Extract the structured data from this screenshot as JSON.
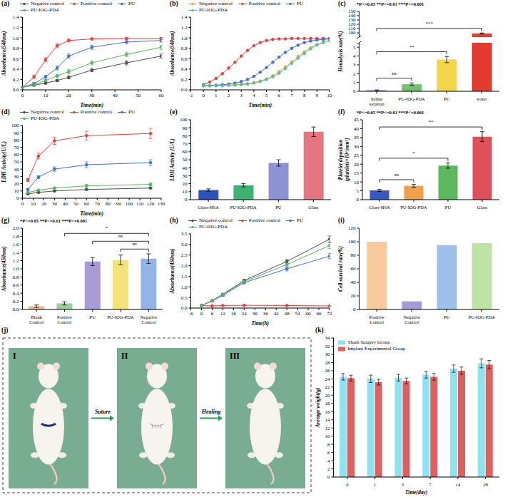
{
  "chart_data": [
    {
      "panel_label": "(a)",
      "type": "line",
      "x_label": "Time(min)",
      "y_label": "Absorbance(540nm)",
      "x": [
        0,
        5,
        10,
        15,
        20,
        30,
        45,
        60
      ],
      "xlim": [
        0,
        60
      ],
      "xticks": [
        0,
        10,
        20,
        30,
        40,
        50,
        60
      ],
      "ylim": [
        0,
        1.4
      ],
      "yticks": [
        {
          "value": 0,
          "label": "0.0"
        },
        0.2,
        0.4,
        0.6,
        0.8,
        {
          "value": 1,
          "label": "1.0"
        },
        1.2,
        1.4
      ],
      "legend": "top",
      "grid": false,
      "marker": "circle",
      "series": [
        {
          "name": "Negative control",
          "color": "#4d4d4d",
          "values": [
            0.05,
            0.09,
            0.13,
            0.18,
            0.24,
            0.38,
            0.52,
            0.65
          ],
          "errors": [
            0.01,
            0.02,
            0.02,
            0.02,
            0.03,
            0.03,
            0.04,
            0.04
          ]
        },
        {
          "name": "Positive control",
          "color": "#e8403a",
          "values": [
            0.05,
            0.25,
            0.58,
            0.85,
            0.95,
            0.98,
            0.99,
            0.99
          ],
          "errors": [
            0.01,
            0.03,
            0.04,
            0.04,
            0.03,
            0.02,
            0.02,
            0.02
          ]
        },
        {
          "name": "PU",
          "color": "#3f6fd8",
          "values": [
            0.05,
            0.12,
            0.25,
            0.42,
            0.65,
            0.82,
            0.92,
            0.95
          ],
          "errors": [
            0.01,
            0.02,
            0.03,
            0.04,
            0.04,
            0.04,
            0.03,
            0.03
          ]
        },
        {
          "name": "PU-IOG-PDA",
          "color": "#55b85a",
          "values": [
            0.05,
            0.1,
            0.18,
            0.27,
            0.35,
            0.52,
            0.68,
            0.82
          ],
          "errors": [
            0.01,
            0.02,
            0.02,
            0.03,
            0.04,
            0.04,
            0.04,
            0.04
          ]
        }
      ]
    },
    {
      "panel_label": "(b)",
      "type": "line",
      "x_label": "Time(min)",
      "y_label": "Absorbance(540nm)",
      "x": [
        0,
        0.5,
        1,
        1.5,
        2,
        2.5,
        3,
        3.5,
        4,
        4.5,
        5,
        5.5,
        6,
        6.5,
        7,
        7.5,
        8,
        8.5,
        9,
        9.5,
        10
      ],
      "xlim": [
        -1,
        10
      ],
      "xticks": [
        -1,
        0,
        1,
        2,
        3,
        4,
        5,
        6,
        7,
        8,
        9,
        10
      ],
      "ylim": [
        0,
        1.4
      ],
      "yticks": [
        {
          "value": 0,
          "label": "0.0"
        },
        0.2,
        0.4,
        0.6,
        0.8,
        {
          "value": 1,
          "label": "1.0"
        },
        1.2,
        1.4
      ],
      "legend": "top",
      "grid": false,
      "marker": "circle",
      "series": [
        {
          "name": "Negative control",
          "color": "#f5a13c",
          "values": [
            0.08,
            0.08,
            0.08,
            0.08,
            0.09,
            0.1,
            0.11,
            0.12,
            0.14,
            0.17,
            0.21,
            0.27,
            0.35,
            0.44,
            0.54,
            0.64,
            0.73,
            0.81,
            0.87,
            0.92,
            0.95
          ]
        },
        {
          "name": "Positive control",
          "color": "#e8403a",
          "values": [
            0.1,
            0.15,
            0.22,
            0.31,
            0.42,
            0.53,
            0.65,
            0.76,
            0.85,
            0.91,
            0.95,
            0.97,
            0.98,
            0.98,
            0.99,
            0.99,
            0.99,
            0.99,
            0.99,
            0.99,
            0.99
          ]
        },
        {
          "name": "PU",
          "color": "#3f6fd8",
          "values": [
            0.08,
            0.08,
            0.09,
            0.1,
            0.11,
            0.13,
            0.16,
            0.2,
            0.26,
            0.34,
            0.43,
            0.53,
            0.63,
            0.72,
            0.8,
            0.86,
            0.91,
            0.94,
            0.96,
            0.97,
            0.98
          ]
        },
        {
          "name": "PU-IOG-PDA",
          "color": "#4cc3a4",
          "values": [
            0.08,
            0.08,
            0.08,
            0.08,
            0.09,
            0.09,
            0.1,
            0.11,
            0.13,
            0.16,
            0.2,
            0.25,
            0.32,
            0.41,
            0.51,
            0.61,
            0.7,
            0.79,
            0.86,
            0.91,
            0.95
          ]
        }
      ]
    },
    {
      "panel_label": "(c)",
      "type": "bar",
      "y_label": "Hemolysis rate(%)",
      "note": "*P<=0.05 **P<=0.01 ***P<=0.001",
      "categories": [
        "Saline solution",
        "PU-IOG-PDA",
        "PU",
        "water"
      ],
      "values": [
        0.1,
        0.8,
        3.6,
        98.5
      ],
      "errors": [
        0.05,
        0.15,
        0.35,
        1.0
      ],
      "colors": [
        "#3f6fd8",
        "#72c36c",
        "#f2d64b",
        "#e33b2f"
      ],
      "ylim": [
        0,
        150
      ],
      "yticks": [
        0,
        1,
        2,
        3,
        4,
        5,
        100,
        110,
        120,
        130,
        140,
        150
      ],
      "axis_break": [
        5.5,
        90
      ],
      "grid": false,
      "brackets": [
        {
          "from": "Saline solution",
          "to": "PU-IOG-PDA",
          "label": "ns"
        },
        {
          "from": "Saline solution",
          "to": "PU",
          "label": "**"
        },
        {
          "from": "Saline solution",
          "to": "water",
          "label": "***"
        }
      ]
    },
    {
      "panel_label": "(d)",
      "type": "line",
      "x_label": "Time(min)",
      "y_label": "LDH Activity(U/L)",
      "x": [
        5,
        15,
        30,
        60,
        120
      ],
      "xlim": [
        0,
        130
      ],
      "xticks": [
        0,
        10,
        20,
        30,
        40,
        50,
        60,
        70,
        80,
        90,
        100,
        110,
        120,
        130
      ],
      "ylim": [
        0,
        100
      ],
      "yticks": [
        0,
        10,
        20,
        30,
        40,
        50,
        60,
        70,
        80,
        90,
        100
      ],
      "legend": "top",
      "grid": false,
      "marker": "circle",
      "series": [
        {
          "name": "Negative control",
          "color": "#4d4d4d",
          "values": [
            6,
            8,
            10,
            12,
            14
          ],
          "errors": [
            1,
            1,
            1,
            1,
            1
          ]
        },
        {
          "name": "Positive control",
          "color": "#e8403a",
          "values": [
            25,
            58,
            79,
            86,
            89
          ],
          "errors": [
            2,
            4,
            5,
            6,
            7
          ]
        },
        {
          "name": "PU",
          "color": "#3f6fd8",
          "values": [
            12,
            29,
            40,
            46,
            49
          ],
          "errors": [
            1,
            2,
            3,
            4,
            4
          ]
        },
        {
          "name": "PU-IOG-PDA",
          "color": "#55b85a",
          "values": [
            8,
            11,
            14,
            17,
            19
          ],
          "errors": [
            1,
            1,
            1,
            2,
            2
          ]
        }
      ]
    },
    {
      "panel_label": "(e)",
      "type": "bar",
      "y_label": "LDH Activity (U/L)",
      "categories": [
        "Glass-HSA",
        "PU-IOG-PDA",
        "PU",
        "Glass"
      ],
      "values": [
        12,
        18,
        46,
        85
      ],
      "errors": [
        1.5,
        2,
        4,
        6
      ],
      "colors": [
        "#2d52b8",
        "#3cb371",
        "#8b93d4",
        "#e57580"
      ],
      "ylim": [
        0,
        100
      ],
      "yticks": [
        0,
        10,
        20,
        30,
        40,
        50,
        60,
        70,
        80,
        90,
        100
      ],
      "grid": false
    },
    {
      "panel_label": "(f)",
      "type": "bar",
      "y_label": "Platelet deposition(platelets×10⁴/mm²)",
      "note": "*P<=0.05 **P<=0.01 ***P<=0.001",
      "categories": [
        "Glass-HSA",
        "PU-IOG-PDA",
        "PU",
        "Glass"
      ],
      "values": [
        5.2,
        7.8,
        19.2,
        35.5
      ],
      "errors": [
        0.6,
        0.8,
        1.5,
        2.8
      ],
      "colors": [
        "#3559c4",
        "#f0a04b",
        "#5cb85c",
        "#e0505a"
      ],
      "ylim": [
        0,
        45
      ],
      "yticks": [
        0,
        5,
        10,
        15,
        20,
        25,
        30,
        35,
        40,
        45
      ],
      "grid": false,
      "brackets": [
        {
          "from": "Glass-HSA",
          "to": "PU-IOG-PDA",
          "label": "ns"
        },
        {
          "from": "Glass-HSA",
          "to": "PU",
          "label": "*"
        },
        {
          "from": "Glass-HSA",
          "to": "Glass",
          "label": "**"
        }
      ]
    },
    {
      "panel_label": "(g)",
      "type": "bar",
      "y_label": "Absorbance(450nm)",
      "note": "*P<=0.05 **P<=0.01 ***P<=0.001",
      "categories": [
        "Blank Control",
        "Positive Control",
        "PU",
        "PU-IOG-PDA",
        "Negative Control"
      ],
      "values": [
        0.08,
        0.15,
        1.18,
        1.22,
        1.25
      ],
      "errors": [
        0.03,
        0.04,
        0.1,
        0.12,
        0.12
      ],
      "colors": [
        "#f2b88a",
        "#9ccf9c",
        "#a99bd6",
        "#f4e27a",
        "#93b4e6"
      ],
      "ylim": [
        0,
        2
      ],
      "yticks": [
        {
          "value": 0,
          "label": "0.0"
        },
        0.2,
        0.4,
        0.6,
        0.8,
        {
          "value": 1,
          "label": "1.0"
        },
        1.2,
        1.4,
        1.6,
        1.8,
        {
          "value": 2,
          "label": "2.0"
        }
      ],
      "grid": false,
      "brackets": [
        {
          "from": "PU-IOG-PDA",
          "to": "Negative Control",
          "label": "ns"
        },
        {
          "from": "PU",
          "to": "Negative Control",
          "label": "ns"
        },
        {
          "from": "Positive Control",
          "to": "Negative Control",
          "label": "*"
        }
      ]
    },
    {
      "panel_label": "(h)",
      "type": "line",
      "x_label": "Time(h)",
      "y_label": "Absorbance(450nm)",
      "x": [
        0,
        6,
        12,
        24,
        48,
        72
      ],
      "xlim": [
        -6,
        72
      ],
      "xticks": [
        -6,
        0,
        6,
        12,
        18,
        24,
        30,
        36,
        42,
        48,
        54,
        60,
        66,
        72
      ],
      "ylim": [
        0,
        3.5
      ],
      "yticks": [
        {
          "value": 0,
          "label": "0.0"
        },
        0.5,
        {
          "value": 1,
          "label": "1.0"
        },
        1.5,
        {
          "value": 2,
          "label": "2.0"
        },
        2.5,
        {
          "value": 3,
          "label": "3.0"
        },
        3.5
      ],
      "legend": "top",
      "grid": false,
      "marker": "circle",
      "series": [
        {
          "name": "Negative control",
          "color": "#4d4d4d",
          "values": [
            0.12,
            0.35,
            0.65,
            1.3,
            2.2,
            3.25
          ],
          "errors": [
            0.02,
            0.03,
            0.04,
            0.06,
            0.1,
            0.15
          ]
        },
        {
          "name": "Positive control",
          "color": "#e8403a",
          "values": [
            0.12,
            0.1,
            0.12,
            0.13,
            0.12,
            0.1
          ],
          "errors": [
            0.01,
            0.01,
            0.01,
            0.01,
            0.01,
            0.01
          ]
        },
        {
          "name": "PU",
          "color": "#3f6fd8",
          "values": [
            0.12,
            0.33,
            0.6,
            1.2,
            1.85,
            2.45
          ],
          "errors": [
            0.02,
            0.03,
            0.04,
            0.06,
            0.1,
            0.12
          ]
        },
        {
          "name": "PU-IOG-PDA",
          "color": "#55b85a",
          "values": [
            0.12,
            0.34,
            0.63,
            1.25,
            2.05,
            2.95
          ],
          "errors": [
            0.02,
            0.03,
            0.04,
            0.06,
            0.1,
            0.14
          ]
        }
      ]
    },
    {
      "panel_label": "(i)",
      "type": "bar",
      "y_label": "Cell survival rate(%)",
      "categories": [
        "Positive Control",
        "Negative Control",
        "PU",
        "PU-IOG-PDA"
      ],
      "values": [
        100,
        12,
        95,
        98
      ],
      "colors": [
        "#f7c99b",
        "#a49ad8",
        "#9fc0ea",
        "#bfe3a6"
      ],
      "ylim": [
        0,
        120
      ],
      "yticks": [
        0,
        20,
        40,
        60,
        80,
        100,
        120
      ],
      "grid": false
    },
    {
      "panel_label": "(k)",
      "type": "bar",
      "x_label": "Time(day)",
      "y_label": "Average weight(g)",
      "categories": [
        "0",
        "1",
        "3",
        "7",
        "14",
        "28"
      ],
      "ylim": [
        0,
        34
      ],
      "yticks": [
        0,
        2,
        4,
        6,
        8,
        10,
        12,
        14,
        16,
        18,
        20,
        22,
        24,
        26,
        28,
        30,
        32,
        34
      ],
      "legend": "top-left",
      "grid": false,
      "series": [
        {
          "name": "Sham Surgery Group",
          "color": "#8fe3f0",
          "values": [
            24.5,
            24,
            24.3,
            25,
            26.5,
            27.8
          ],
          "errors": [
            0.8,
            0.9,
            0.8,
            0.8,
            0.9,
            1.1
          ]
        },
        {
          "name": "Implant Experimental Group",
          "color": "#e06060",
          "values": [
            24.2,
            23.2,
            23.5,
            24.5,
            26,
            27.5
          ],
          "errors": [
            0.7,
            0.7,
            0.7,
            0.8,
            0.9,
            1.0
          ]
        }
      ]
    }
  ],
  "photo_panel": {
    "panel_label": "(j)",
    "stages": [
      "I",
      "II",
      "III"
    ],
    "steps": [
      "Suture",
      "Healing"
    ]
  }
}
